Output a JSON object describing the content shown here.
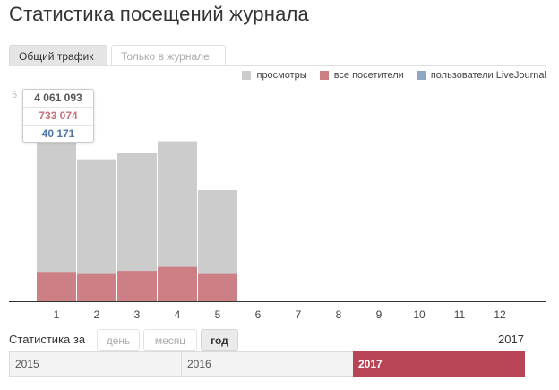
{
  "page": {
    "title": "Статистика посещений журнала"
  },
  "tabs": [
    {
      "label": "Общий трафик",
      "active": true
    },
    {
      "label": "Только в журнале",
      "active": false
    }
  ],
  "legend": [
    {
      "label": "просмотры",
      "color": "#cccccc"
    },
    {
      "label": "все посетители",
      "color": "#cd7f86"
    },
    {
      "label": "пользователи LiveJournal",
      "color": "#8da6c6"
    }
  ],
  "y_axis": {
    "top_tick_partial": "5"
  },
  "tooltip": {
    "views": "4 061 093",
    "visitors": "733 074",
    "lj_users": "40 171"
  },
  "colors": {
    "views": "#cccccc",
    "visitors": "#cd7f86",
    "lj_users": "#8da6c6",
    "views_text": "#555555",
    "visitors_text": "#c9707a",
    "lj_text": "#4d77aa"
  },
  "chart_data": {
    "type": "bar",
    "categories": [
      "1",
      "2",
      "3",
      "4",
      "5",
      "6",
      "7",
      "8",
      "9",
      "10",
      "11",
      "12"
    ],
    "series": [
      {
        "name": "просмотры",
        "values": [
          4061093,
          3550000,
          3700000,
          4000000,
          2780000,
          null,
          null,
          null,
          null,
          null,
          null,
          null
        ]
      },
      {
        "name": "все посетители",
        "values": [
          733074,
          680000,
          760000,
          860000,
          680000,
          null,
          null,
          null,
          null,
          null,
          null,
          null
        ]
      },
      {
        "name": "пользователи LiveJournal",
        "values": [
          40171,
          38000,
          41000,
          44000,
          36000,
          null,
          null,
          null,
          null,
          null,
          null,
          null
        ]
      }
    ],
    "ylim": [
      0,
      5000000
    ],
    "grid": false,
    "legend_position": "top-right"
  },
  "stats_bar": {
    "label": "Статистика за",
    "periods": [
      {
        "label": "день",
        "active": false
      },
      {
        "label": "месяц",
        "active": false
      },
      {
        "label": "год",
        "active": true
      }
    ],
    "selected_year_label": "2017"
  },
  "timeline": {
    "years": [
      "2015",
      "2016",
      "2017"
    ],
    "selected": "2017"
  }
}
